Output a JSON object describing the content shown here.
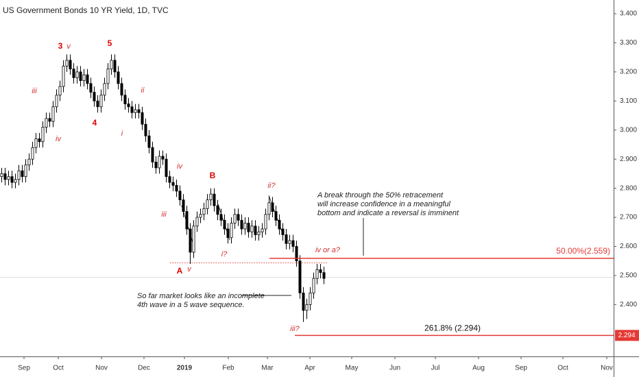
{
  "chart_data": {
    "type": "candlestick",
    "title": "US Government Bonds 10 YR Yield, 1D, TVC",
    "open": [
      2.84,
      2.85,
      2.83,
      2.84,
      2.82,
      2.83,
      2.86,
      2.84,
      2.88,
      2.9,
      2.94,
      2.97,
      2.96,
      3.01,
      3.04,
      3.03,
      3.08,
      3.12,
      3.15,
      3.22,
      3.24,
      3.21,
      3.18,
      3.2,
      3.17,
      3.19,
      3.16,
      3.13,
      3.1,
      3.08,
      3.12,
      3.16,
      3.21,
      3.24,
      3.2,
      3.16,
      3.12,
      3.09,
      3.08,
      3.06,
      3.07,
      3.06,
      3.02,
      2.98,
      2.94,
      2.89,
      2.87,
      2.91,
      2.9,
      2.84,
      2.82,
      2.81,
      2.79,
      2.76,
      2.72,
      2.66,
      2.58,
      2.67,
      2.7,
      2.71,
      2.73,
      2.76,
      2.78,
      2.74,
      2.71,
      2.69,
      2.66,
      2.63,
      2.68,
      2.71,
      2.69,
      2.66,
      2.68,
      2.65,
      2.67,
      2.64,
      2.65,
      2.66,
      2.71,
      2.75,
      2.72,
      2.69,
      2.66,
      2.64,
      2.61,
      2.62,
      2.6,
      2.55,
      2.44,
      2.38,
      2.4,
      2.44,
      2.49,
      2.52,
      2.51
    ],
    "high": [
      2.87,
      2.87,
      2.86,
      2.86,
      2.85,
      2.88,
      2.88,
      2.9,
      2.92,
      2.96,
      2.99,
      2.99,
      3.03,
      3.06,
      3.06,
      3.1,
      3.14,
      3.17,
      3.24,
      3.26,
      3.26,
      3.23,
      3.22,
      3.22,
      3.21,
      3.21,
      3.18,
      3.15,
      3.12,
      3.14,
      3.18,
      3.23,
      3.26,
      3.26,
      3.22,
      3.18,
      3.14,
      3.11,
      3.1,
      3.09,
      3.09,
      3.08,
      3.04,
      3.0,
      2.96,
      2.91,
      2.93,
      2.93,
      2.92,
      2.86,
      2.84,
      2.83,
      2.81,
      2.78,
      2.74,
      2.68,
      2.69,
      2.72,
      2.73,
      2.75,
      2.78,
      2.8,
      2.8,
      2.76,
      2.73,
      2.71,
      2.68,
      2.7,
      2.73,
      2.73,
      2.71,
      2.7,
      2.7,
      2.69,
      2.69,
      2.67,
      2.68,
      2.73,
      2.77,
      2.77,
      2.74,
      2.71,
      2.68,
      2.66,
      2.64,
      2.64,
      2.62,
      2.57,
      2.46,
      2.42,
      2.46,
      2.51,
      2.54,
      2.54,
      2.53
    ],
    "low": [
      2.82,
      2.81,
      2.81,
      2.8,
      2.8,
      2.81,
      2.82,
      2.82,
      2.86,
      2.88,
      2.92,
      2.94,
      2.94,
      2.99,
      3.01,
      3.01,
      3.06,
      3.1,
      3.13,
      3.2,
      3.19,
      3.16,
      3.16,
      3.15,
      3.15,
      3.14,
      3.11,
      3.08,
      3.06,
      3.06,
      3.1,
      3.14,
      3.19,
      3.18,
      3.14,
      3.1,
      3.07,
      3.06,
      3.04,
      3.04,
      3.04,
      3.0,
      2.96,
      2.92,
      2.87,
      2.85,
      2.85,
      2.88,
      2.82,
      2.8,
      2.79,
      2.77,
      2.74,
      2.7,
      2.64,
      2.54,
      2.56,
      2.65,
      2.68,
      2.69,
      2.71,
      2.74,
      2.72,
      2.69,
      2.67,
      2.64,
      2.61,
      2.61,
      2.66,
      2.67,
      2.64,
      2.64,
      2.63,
      2.63,
      2.62,
      2.62,
      2.63,
      2.64,
      2.69,
      2.7,
      2.67,
      2.64,
      2.62,
      2.59,
      2.59,
      2.58,
      2.53,
      2.42,
      2.34,
      2.35,
      2.38,
      2.42,
      2.47,
      2.49,
      2.47
    ],
    "close": [
      2.85,
      2.83,
      2.84,
      2.82,
      2.83,
      2.86,
      2.84,
      2.88,
      2.9,
      2.94,
      2.97,
      2.96,
      3.01,
      3.04,
      3.03,
      3.08,
      3.12,
      3.15,
      3.22,
      3.24,
      3.21,
      3.18,
      3.2,
      3.17,
      3.19,
      3.16,
      3.13,
      3.1,
      3.08,
      3.12,
      3.16,
      3.21,
      3.24,
      3.2,
      3.16,
      3.12,
      3.09,
      3.08,
      3.06,
      3.07,
      3.06,
      3.02,
      2.98,
      2.94,
      2.89,
      2.87,
      2.91,
      2.9,
      2.84,
      2.82,
      2.81,
      2.79,
      2.76,
      2.72,
      2.66,
      2.58,
      2.67,
      2.7,
      2.71,
      2.73,
      2.76,
      2.78,
      2.74,
      2.71,
      2.69,
      2.66,
      2.63,
      2.68,
      2.71,
      2.69,
      2.66,
      2.68,
      2.65,
      2.67,
      2.64,
      2.65,
      2.66,
      2.71,
      2.75,
      2.72,
      2.69,
      2.66,
      2.64,
      2.61,
      2.62,
      2.6,
      2.55,
      2.44,
      2.38,
      2.4,
      2.44,
      2.49,
      2.52,
      2.51,
      2.49
    ],
    "up_color": "#ffffff",
    "down_color": "#000000",
    "xlim": [
      -0.5,
      178.5
    ],
    "xticks": [
      {
        "value": 6.5,
        "label": "Sep"
      },
      {
        "value": 16.5,
        "label": "Oct"
      },
      {
        "value": 29.1,
        "label": "Nov"
      },
      {
        "value": 41.5,
        "label": "Dec"
      },
      {
        "value": 53.3,
        "label": "2019"
      },
      {
        "value": 66.1,
        "label": "Feb"
      },
      {
        "value": 77.5,
        "label": "Mar"
      },
      {
        "value": 89.9,
        "label": "Apr"
      },
      {
        "value": 102.1,
        "label": "May"
      },
      {
        "value": 114.7,
        "label": "Jun"
      },
      {
        "value": 126.5,
        "label": "Jul"
      },
      {
        "value": 139.1,
        "label": "Aug"
      },
      {
        "value": 151.5,
        "label": "Sep"
      },
      {
        "value": 163.7,
        "label": "Oct"
      },
      {
        "value": 176.5,
        "label": "Nov"
      }
    ],
    "ylim": [
      2.2217,
      3.4472
    ],
    "yticks": [
      {
        "value": 2.4,
        "label": "2.400"
      },
      {
        "value": 2.5,
        "label": "2.500"
      },
      {
        "value": 2.6,
        "label": "2.600"
      },
      {
        "value": 2.7,
        "label": "2.700"
      },
      {
        "value": 2.8,
        "label": "2.800"
      },
      {
        "value": 2.9,
        "label": "2.900"
      },
      {
        "value": 3.0,
        "label": "3.000"
      },
      {
        "value": 3.1,
        "label": "3.100"
      },
      {
        "value": 3.2,
        "label": "3.200"
      },
      {
        "value": 3.3,
        "label": "3.300"
      },
      {
        "value": 3.4,
        "label": "3.400"
      }
    ],
    "levels": [
      {
        "value": 2.559,
        "label": "50.00%(2.559)",
        "color": "#e53935"
      },
      {
        "value": 2.294,
        "label": "261.8% (2.294)",
        "color": "#e53935"
      }
    ],
    "annotations": [
      "3",
      "v",
      "5",
      "iii",
      "iv",
      "4",
      "ii",
      "i",
      "iv",
      "B",
      "iii",
      "ii?",
      "A",
      "v",
      "i?",
      "iv  or a?",
      "iii?"
    ],
    "notes": [
      [
        "A break through the 50% retracement",
        "will increase confidence in a meaningful",
        "bottom and indicate a reversal is imminent"
      ],
      [
        "So far market looks like an incomplete",
        "4th wave in a 5 wave sequence."
      ]
    ]
  }
}
